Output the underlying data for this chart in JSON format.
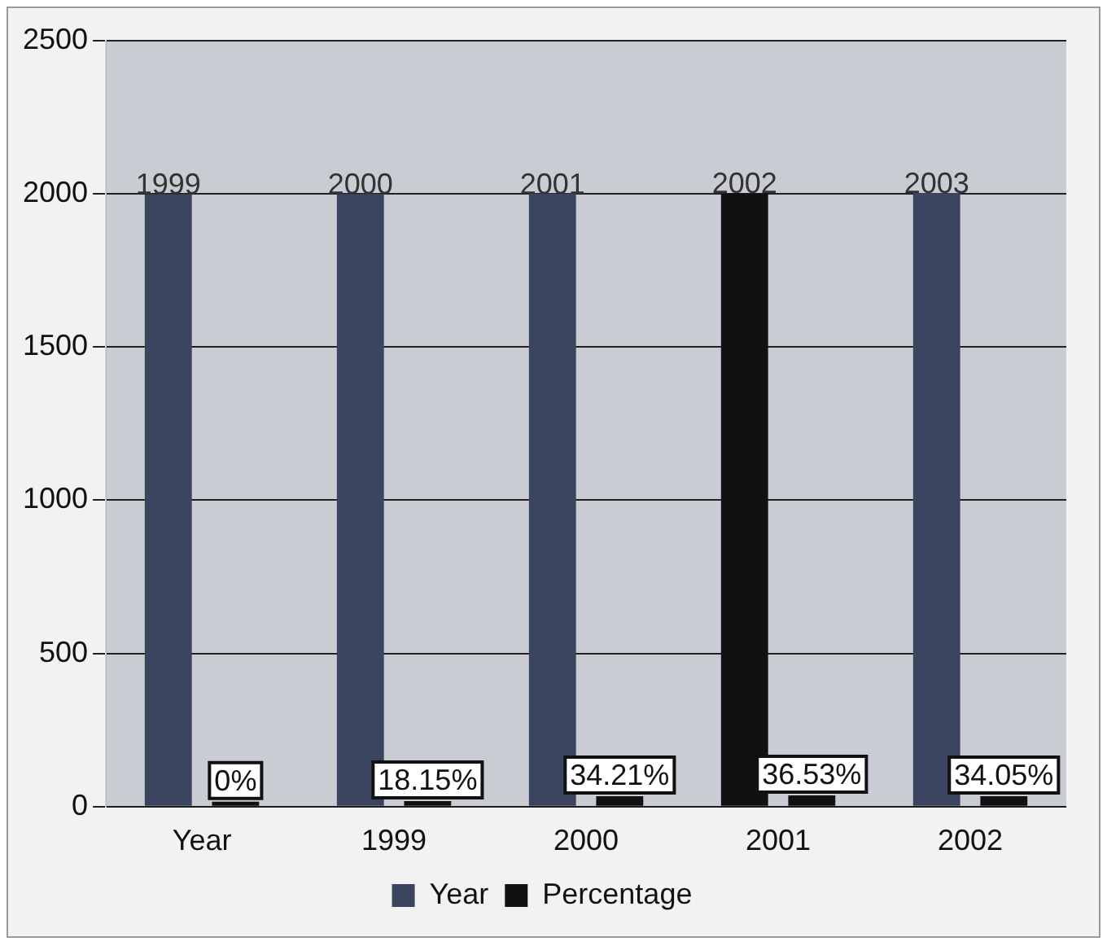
{
  "chart_data": {
    "type": "bar",
    "categories": [
      "Year",
      "1999",
      "2000",
      "2001",
      "2002"
    ],
    "series": [
      {
        "name": "Year",
        "color": "#3c4560",
        "colors": [
          "#3c4560",
          "#3c4560",
          "#3c4560",
          "#111111",
          "#3c4560"
        ],
        "values": [
          1999,
          2000,
          2001,
          2002,
          2003
        ],
        "value_labels": [
          "1999",
          "2000",
          "2001",
          "2002",
          "2003"
        ]
      },
      {
        "name": "Percentage",
        "color": "#111111",
        "values": [
          0,
          18.15,
          34.21,
          36.53,
          34.05
        ],
        "value_labels": [
          "0%",
          "18.15%",
          "34.21%",
          "36.53%",
          "34.05%"
        ]
      }
    ],
    "ylim": [
      0,
      2500
    ],
    "yticks": [
      0,
      500,
      1000,
      1500,
      2000,
      2500
    ],
    "grid": "y",
    "legend": "bottom"
  }
}
